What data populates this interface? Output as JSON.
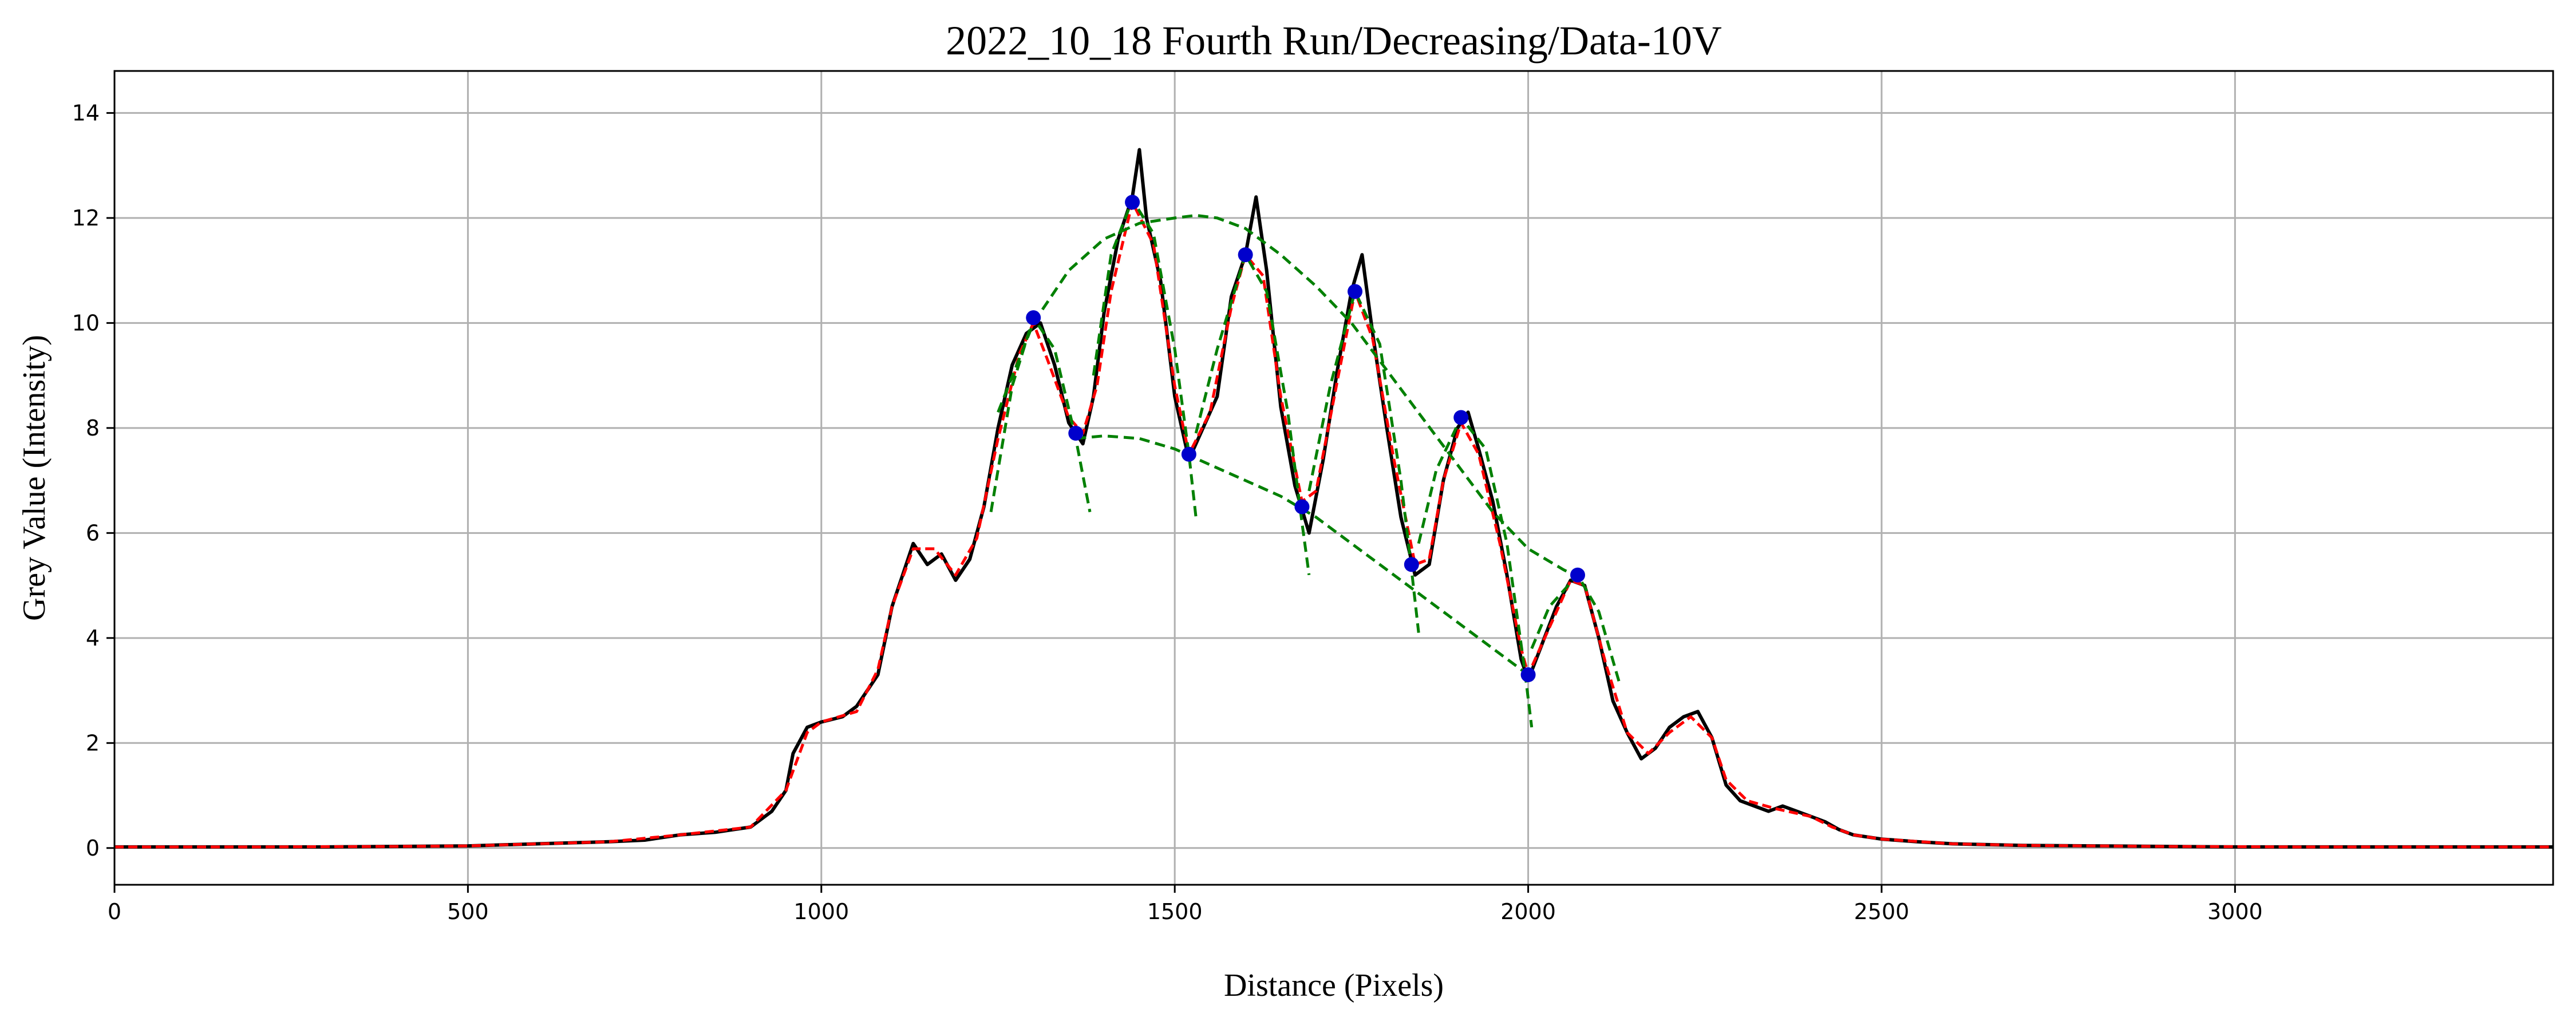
{
  "chart_data": {
    "type": "line",
    "title": "2022_10_18 Fourth Run/Decreasing/Data-10V",
    "xlabel": "Distance (Pixels)",
    "ylabel": "Grey Value (Intensity)",
    "xlim": [
      0,
      3450
    ],
    "ylim": [
      -0.7,
      14.8
    ],
    "xticks": [
      0,
      500,
      1000,
      1500,
      2000,
      2500,
      3000
    ],
    "yticks": [
      0,
      2,
      4,
      6,
      8,
      10,
      12,
      14
    ],
    "grid": true,
    "legend": "none",
    "series": [
      {
        "role": "raw-profile",
        "color": "#000000",
        "points": [
          [
            0,
            0.02
          ],
          [
            100,
            0.02
          ],
          [
            200,
            0.02
          ],
          [
            300,
            0.02
          ],
          [
            400,
            0.03
          ],
          [
            500,
            0.04
          ],
          [
            600,
            0.08
          ],
          [
            700,
            0.12
          ],
          [
            750,
            0.15
          ],
          [
            800,
            0.25
          ],
          [
            850,
            0.3
          ],
          [
            900,
            0.4
          ],
          [
            930,
            0.7
          ],
          [
            950,
            1.1
          ],
          [
            960,
            1.8
          ],
          [
            980,
            2.3
          ],
          [
            1000,
            2.4
          ],
          [
            1030,
            2.5
          ],
          [
            1050,
            2.7
          ],
          [
            1080,
            3.3
          ],
          [
            1100,
            4.6
          ],
          [
            1130,
            5.8
          ],
          [
            1150,
            5.4
          ],
          [
            1170,
            5.6
          ],
          [
            1190,
            5.1
          ],
          [
            1210,
            5.5
          ],
          [
            1230,
            6.5
          ],
          [
            1250,
            8.0
          ],
          [
            1270,
            9.2
          ],
          [
            1290,
            9.8
          ],
          [
            1310,
            10.0
          ],
          [
            1330,
            9.2
          ],
          [
            1350,
            8.1
          ],
          [
            1370,
            7.7
          ],
          [
            1385,
            8.6
          ],
          [
            1400,
            10.2
          ],
          [
            1420,
            11.6
          ],
          [
            1440,
            12.4
          ],
          [
            1450,
            13.3
          ],
          [
            1460,
            12.0
          ],
          [
            1480,
            10.8
          ],
          [
            1500,
            8.6
          ],
          [
            1520,
            7.4
          ],
          [
            1540,
            8.0
          ],
          [
            1560,
            8.6
          ],
          [
            1580,
            10.5
          ],
          [
            1600,
            11.3
          ],
          [
            1615,
            12.4
          ],
          [
            1630,
            11.0
          ],
          [
            1650,
            8.4
          ],
          [
            1670,
            6.9
          ],
          [
            1690,
            6.0
          ],
          [
            1710,
            7.4
          ],
          [
            1730,
            9.1
          ],
          [
            1750,
            10.6
          ],
          [
            1765,
            11.3
          ],
          [
            1780,
            9.8
          ],
          [
            1800,
            8.0
          ],
          [
            1820,
            6.3
          ],
          [
            1840,
            5.2
          ],
          [
            1860,
            5.4
          ],
          [
            1880,
            7.0
          ],
          [
            1900,
            8.0
          ],
          [
            1915,
            8.3
          ],
          [
            1930,
            7.6
          ],
          [
            1950,
            6.6
          ],
          [
            1970,
            5.2
          ],
          [
            1990,
            3.6
          ],
          [
            2000,
            3.2
          ],
          [
            2020,
            3.9
          ],
          [
            2040,
            4.6
          ],
          [
            2060,
            5.1
          ],
          [
            2080,
            5.0
          ],
          [
            2100,
            4.0
          ],
          [
            2120,
            2.8
          ],
          [
            2140,
            2.2
          ],
          [
            2160,
            1.7
          ],
          [
            2180,
            1.9
          ],
          [
            2200,
            2.3
          ],
          [
            2220,
            2.5
          ],
          [
            2240,
            2.6
          ],
          [
            2260,
            2.1
          ],
          [
            2280,
            1.2
          ],
          [
            2300,
            0.9
          ],
          [
            2320,
            0.8
          ],
          [
            2340,
            0.7
          ],
          [
            2360,
            0.8
          ],
          [
            2380,
            0.7
          ],
          [
            2400,
            0.6
          ],
          [
            2420,
            0.5
          ],
          [
            2440,
            0.35
          ],
          [
            2460,
            0.25
          ],
          [
            2500,
            0.17
          ],
          [
            2550,
            0.12
          ],
          [
            2600,
            0.08
          ],
          [
            2700,
            0.05
          ],
          [
            2800,
            0.04
          ],
          [
            2900,
            0.03
          ],
          [
            3000,
            0.02
          ],
          [
            3100,
            0.02
          ],
          [
            3200,
            0.02
          ],
          [
            3300,
            0.02
          ],
          [
            3450,
            0.02
          ]
        ]
      },
      {
        "role": "smoothed-profile",
        "color": "#ff0000",
        "points": [
          [
            0,
            0.02
          ],
          [
            200,
            0.02
          ],
          [
            400,
            0.03
          ],
          [
            500,
            0.04
          ],
          [
            600,
            0.08
          ],
          [
            700,
            0.12
          ],
          [
            800,
            0.25
          ],
          [
            900,
            0.4
          ],
          [
            950,
            1.1
          ],
          [
            980,
            2.2
          ],
          [
            1000,
            2.4
          ],
          [
            1050,
            2.6
          ],
          [
            1080,
            3.4
          ],
          [
            1100,
            4.6
          ],
          [
            1130,
            5.7
          ],
          [
            1160,
            5.7
          ],
          [
            1190,
            5.2
          ],
          [
            1220,
            5.9
          ],
          [
            1250,
            7.8
          ],
          [
            1280,
            9.4
          ],
          [
            1300,
            10.0
          ],
          [
            1320,
            9.3
          ],
          [
            1350,
            8.2
          ],
          [
            1370,
            7.9
          ],
          [
            1390,
            8.8
          ],
          [
            1410,
            10.6
          ],
          [
            1440,
            12.3
          ],
          [
            1470,
            11.5
          ],
          [
            1500,
            8.8
          ],
          [
            1520,
            7.5
          ],
          [
            1550,
            8.3
          ],
          [
            1580,
            10.3
          ],
          [
            1600,
            11.3
          ],
          [
            1625,
            10.9
          ],
          [
            1650,
            8.6
          ],
          [
            1680,
            6.6
          ],
          [
            1700,
            6.8
          ],
          [
            1730,
            8.9
          ],
          [
            1755,
            10.6
          ],
          [
            1780,
            9.7
          ],
          [
            1810,
            7.4
          ],
          [
            1840,
            5.4
          ],
          [
            1860,
            5.5
          ],
          [
            1880,
            7.0
          ],
          [
            1905,
            8.1
          ],
          [
            1930,
            7.5
          ],
          [
            1960,
            5.8
          ],
          [
            1990,
            3.8
          ],
          [
            2000,
            3.3
          ],
          [
            2030,
            4.2
          ],
          [
            2060,
            5.1
          ],
          [
            2080,
            5.0
          ],
          [
            2110,
            3.5
          ],
          [
            2140,
            2.2
          ],
          [
            2170,
            1.8
          ],
          [
            2200,
            2.2
          ],
          [
            2230,
            2.5
          ],
          [
            2260,
            2.1
          ],
          [
            2280,
            1.3
          ],
          [
            2310,
            0.9
          ],
          [
            2350,
            0.75
          ],
          [
            2400,
            0.6
          ],
          [
            2430,
            0.4
          ],
          [
            2460,
            0.25
          ],
          [
            2500,
            0.17
          ],
          [
            2600,
            0.08
          ],
          [
            2700,
            0.05
          ],
          [
            2900,
            0.03
          ],
          [
            3100,
            0.02
          ],
          [
            3450,
            0.02
          ]
        ]
      },
      {
        "role": "upper-envelope-fit",
        "color": "#008000",
        "dashed": true,
        "points": [
          [
            1250,
            8.3
          ],
          [
            1300,
            10.0
          ],
          [
            1350,
            11.0
          ],
          [
            1400,
            11.6
          ],
          [
            1450,
            11.9
          ],
          [
            1500,
            12.0
          ],
          [
            1530,
            12.05
          ],
          [
            1560,
            12.0
          ],
          [
            1600,
            11.8
          ],
          [
            1650,
            11.3
          ],
          [
            1700,
            10.7
          ],
          [
            1750,
            10.0
          ],
          [
            1800,
            9.1
          ],
          [
            1850,
            8.2
          ],
          [
            1900,
            7.3
          ],
          [
            1950,
            6.4
          ],
          [
            2000,
            5.7
          ],
          [
            2050,
            5.3
          ],
          [
            2080,
            5.1
          ]
        ]
      },
      {
        "role": "lower-envelope-fit",
        "color": "#008000",
        "dashed": true,
        "points": [
          [
            1360,
            7.8
          ],
          [
            1400,
            7.85
          ],
          [
            1450,
            7.8
          ],
          [
            1500,
            7.6
          ],
          [
            1550,
            7.3
          ],
          [
            1600,
            7.0
          ],
          [
            1650,
            6.7
          ],
          [
            1700,
            6.3
          ],
          [
            1750,
            5.8
          ],
          [
            1800,
            5.3
          ],
          [
            1850,
            4.8
          ],
          [
            1900,
            4.3
          ],
          [
            1950,
            3.8
          ],
          [
            2000,
            3.3
          ]
        ]
      },
      {
        "role": "peak-fit",
        "color": "#008000",
        "dashed": true,
        "points": [
          [
            1240,
            6.4
          ],
          [
            1270,
            8.8
          ],
          [
            1300,
            10.1
          ],
          [
            1330,
            9.5
          ],
          [
            1360,
            7.8
          ],
          [
            1380,
            6.4
          ]
        ]
      },
      {
        "role": "peak-fit",
        "color": "#008000",
        "dashed": true,
        "points": [
          [
            1385,
            9.0
          ],
          [
            1410,
            11.3
          ],
          [
            1440,
            12.35
          ],
          [
            1470,
            11.7
          ],
          [
            1500,
            9.5
          ],
          [
            1520,
            7.5
          ],
          [
            1530,
            6.3
          ]
        ]
      },
      {
        "role": "peak-fit",
        "color": "#008000",
        "dashed": true,
        "points": [
          [
            1530,
            7.9
          ],
          [
            1560,
            9.5
          ],
          [
            1600,
            11.3
          ],
          [
            1630,
            10.6
          ],
          [
            1660,
            8.3
          ],
          [
            1680,
            6.2
          ],
          [
            1690,
            5.2
          ]
        ]
      },
      {
        "role": "peak-fit",
        "color": "#008000",
        "dashed": true,
        "points": [
          [
            1690,
            6.8
          ],
          [
            1720,
            8.8
          ],
          [
            1755,
            10.6
          ],
          [
            1790,
            9.6
          ],
          [
            1820,
            7.0
          ],
          [
            1835,
            5.3
          ],
          [
            1845,
            4.1
          ]
        ]
      },
      {
        "role": "peak-fit",
        "color": "#008000",
        "dashed": true,
        "points": [
          [
            1845,
            5.8
          ],
          [
            1870,
            7.2
          ],
          [
            1905,
            8.2
          ],
          [
            1940,
            7.6
          ],
          [
            1970,
            5.8
          ],
          [
            1995,
            3.4
          ],
          [
            2005,
            2.3
          ]
        ]
      },
      {
        "role": "peak-fit",
        "color": "#008000",
        "dashed": true,
        "points": [
          [
            2005,
            3.8
          ],
          [
            2030,
            4.6
          ],
          [
            2070,
            5.2
          ],
          [
            2100,
            4.5
          ],
          [
            2130,
            3.1
          ]
        ]
      }
    ],
    "markers": {
      "color": "#0000cc",
      "points": [
        [
          1300,
          10.1
        ],
        [
          1360,
          7.9
        ],
        [
          1440,
          12.3
        ],
        [
          1520,
          7.5
        ],
        [
          1600,
          11.3
        ],
        [
          1680,
          6.5
        ],
        [
          1755,
          10.6
        ],
        [
          1835,
          5.4
        ],
        [
          1905,
          8.2
        ],
        [
          2000,
          3.3
        ],
        [
          2070,
          5.2
        ]
      ]
    }
  }
}
